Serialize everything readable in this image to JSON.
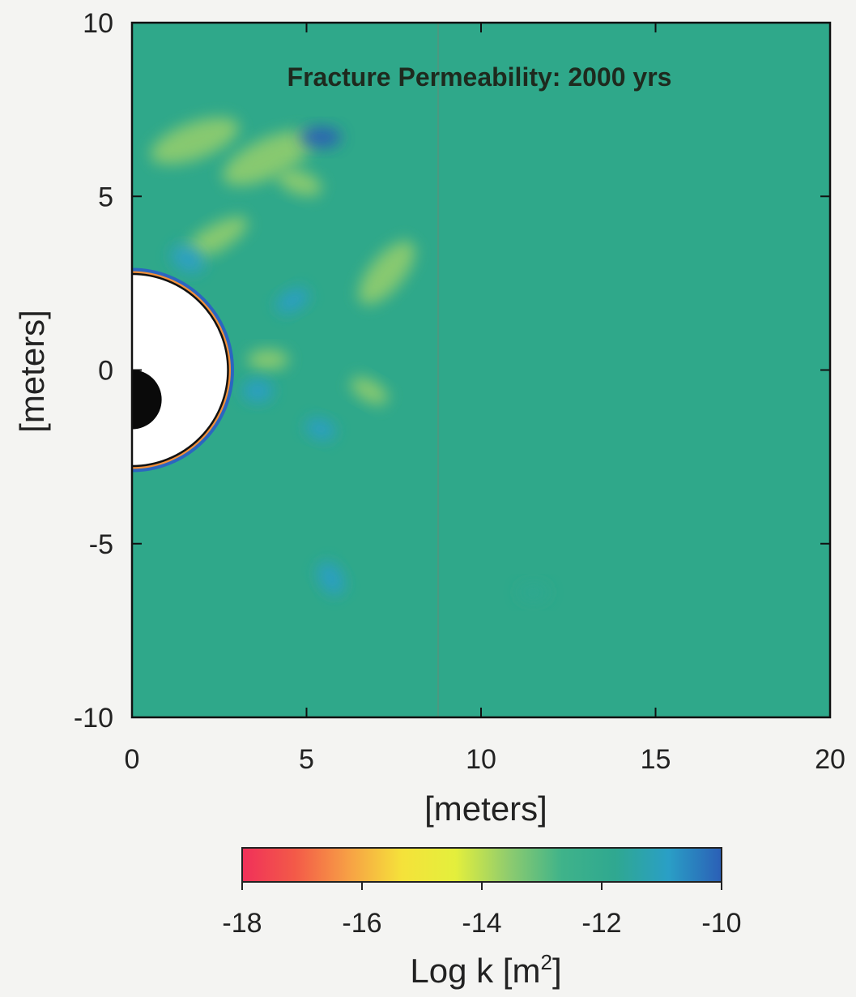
{
  "chart_data": {
    "type": "heatmap",
    "title": "Fracture Permeability: 2000 yrs",
    "xlabel": "[meters]",
    "ylabel": "[meters]",
    "xlim": [
      0,
      20
    ],
    "ylim": [
      -10,
      10
    ],
    "x_ticks": [
      "0",
      "5",
      "10",
      "15",
      "20"
    ],
    "y_ticks": [
      "10",
      "5",
      "0",
      "-5",
      "-10"
    ],
    "background_value": -12,
    "features": [
      {
        "kind": "drift-opening",
        "center": [
          0,
          0
        ],
        "radius": 2.75,
        "value": "excluded"
      },
      {
        "kind": "waste-package",
        "center": [
          0,
          -0.85
        ],
        "radius": 0.85
      },
      {
        "kind": "low-permeability-patch",
        "center": [
          1.8,
          6.6
        ],
        "value": -13.9
      },
      {
        "kind": "low-permeability-patch",
        "center": [
          3.9,
          6.1
        ],
        "value": -13.9
      },
      {
        "kind": "low-permeability-patch",
        "center": [
          2.4,
          3.8
        ],
        "value": -13.8
      },
      {
        "kind": "low-permeability-patch",
        "center": [
          7.3,
          2.8
        ],
        "value": -13.8
      },
      {
        "kind": "low-permeability-patch",
        "center": [
          4.8,
          5.4
        ],
        "value": -13.3
      },
      {
        "kind": "low-permeability-patch",
        "center": [
          3.9,
          0.3
        ],
        "value": -13.4
      },
      {
        "kind": "low-permeability-patch",
        "center": [
          6.8,
          -0.6
        ],
        "value": -13.4
      },
      {
        "kind": "high-permeability-patch",
        "center": [
          5.4,
          6.7
        ],
        "value": -10.4
      },
      {
        "kind": "high-permeability-patch",
        "center": [
          1.6,
          3.2
        ],
        "value": -10.6
      },
      {
        "kind": "high-permeability-patch",
        "center": [
          4.6,
          2.0
        ],
        "value": -10.8
      },
      {
        "kind": "high-permeability-patch",
        "center": [
          3.6,
          -0.6
        ],
        "value": -10.6
      },
      {
        "kind": "high-permeability-patch",
        "center": [
          5.4,
          -1.7
        ],
        "value": -10.9
      },
      {
        "kind": "high-permeability-patch",
        "center": [
          5.7,
          -6.0
        ],
        "value": -11.1
      },
      {
        "kind": "high-permeability-patch",
        "center": [
          11.5,
          -6.4
        ],
        "value": -11.4
      }
    ],
    "colorbar": {
      "label_text": "Log k [m",
      "label_superscript": "2",
      "label_suffix": "]",
      "range": [
        -18,
        -10
      ],
      "ticks": [
        "-18",
        "-16",
        "-14",
        "-12",
        "-10"
      ],
      "colors": [
        "#f0305a",
        "#f35a48",
        "#f7a045",
        "#f5e23a",
        "#e4ef3c",
        "#8fcc6e",
        "#3fb38a",
        "#2fa890",
        "#2a9fc6",
        "#2b5fb6"
      ]
    },
    "grid": false
  }
}
